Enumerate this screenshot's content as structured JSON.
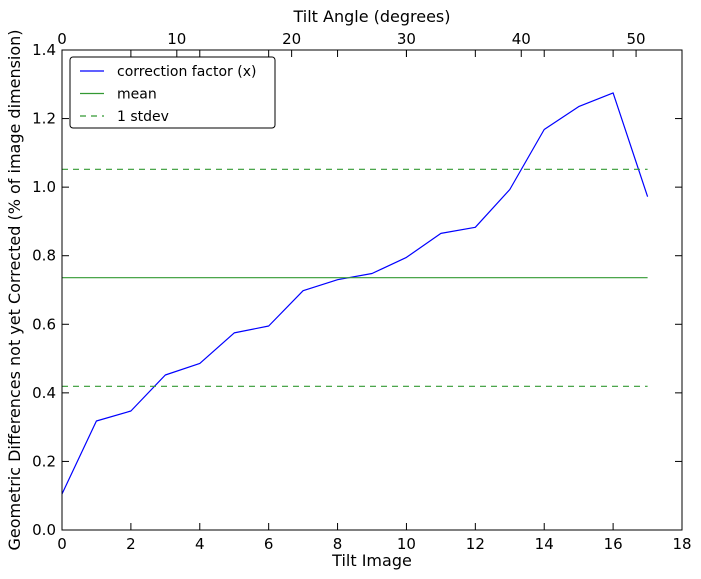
{
  "chart_data": {
    "type": "line",
    "xlabel": "Tilt Image",
    "ylabel": "Geometric Differences not yet Corrected (% of image dimension)",
    "top_xlabel": "Tilt Angle (degrees)",
    "xlim": [
      0,
      18
    ],
    "ylim": [
      0.0,
      1.4
    ],
    "top_xlim": [
      0,
      54
    ],
    "x_ticks": [
      0,
      2,
      4,
      6,
      8,
      10,
      12,
      14,
      16,
      18
    ],
    "y_ticks": [
      0.0,
      0.2,
      0.4,
      0.6,
      0.8,
      1.0,
      1.2,
      1.4
    ],
    "top_x_ticks": [
      0,
      10,
      20,
      30,
      40,
      50
    ],
    "x_tick_labels": [
      "0",
      "2",
      "4",
      "6",
      "8",
      "10",
      "12",
      "14",
      "16",
      "18"
    ],
    "y_tick_labels": [
      "0.0",
      "0.2",
      "0.4",
      "0.6",
      "0.8",
      "1.0",
      "1.2",
      "1.4"
    ],
    "top_x_tick_labels": [
      "0",
      "10",
      "20",
      "30",
      "40",
      "50"
    ],
    "grid": false,
    "legend_position": "top-left",
    "series": [
      {
        "name": "correction factor (x)",
        "color": "#0000ff",
        "style": "solid",
        "x": [
          0,
          1,
          2,
          3,
          4,
          5,
          6,
          7,
          8,
          9,
          10,
          11,
          12,
          13,
          14,
          15,
          16,
          17
        ],
        "y": [
          0.105,
          0.318,
          0.347,
          0.452,
          0.486,
          0.575,
          0.595,
          0.698,
          0.73,
          0.748,
          0.795,
          0.865,
          0.883,
          0.993,
          1.168,
          1.235,
          1.275,
          0.972
        ]
      },
      {
        "name": "mean",
        "color": "#339933",
        "style": "solid",
        "x": [
          0,
          17
        ],
        "y": [
          0.736,
          0.736
        ]
      },
      {
        "name": "1 stdev",
        "color": "#339933",
        "style": "dashed",
        "x": [
          0,
          17
        ],
        "y": [
          1.052,
          1.052
        ]
      },
      {
        "name": "",
        "color": "#339933",
        "style": "dashed",
        "x": [
          0,
          17
        ],
        "y": [
          0.419,
          0.419
        ]
      }
    ],
    "legend_entries": [
      {
        "label": "correction factor (x)",
        "color": "#0000ff",
        "style": "solid"
      },
      {
        "label": "mean",
        "color": "#339933",
        "style": "solid"
      },
      {
        "label": "1 stdev",
        "color": "#339933",
        "style": "dashed"
      }
    ]
  }
}
